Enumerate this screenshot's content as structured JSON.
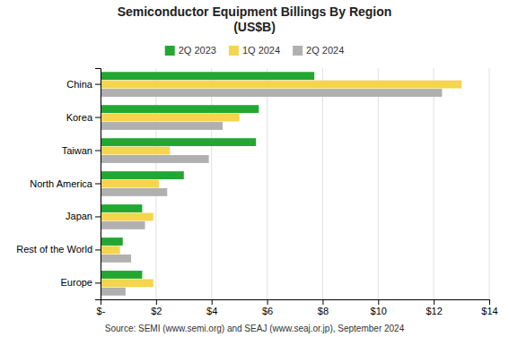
{
  "chart_data": {
    "type": "bar",
    "orientation": "horizontal",
    "title": "Semiconductor Equipment Billings By Region\n(US$B)",
    "subtitle": "Source: SEMI (www.semi.org) and SEAJ (www.seaj.or.jp), September 2024",
    "categories": [
      "China",
      "Korea",
      "Taiwan",
      "North America",
      "Japan",
      "Rest of the World",
      "Europe"
    ],
    "series": [
      {
        "name": "2Q 2023",
        "color": "#22a832",
        "values": [
          7.7,
          5.7,
          5.6,
          3.0,
          1.5,
          0.8,
          1.5
        ]
      },
      {
        "name": "1Q 2024",
        "color": "#f5d44e",
        "values": [
          13.0,
          5.0,
          2.5,
          2.1,
          1.9,
          0.7,
          1.9
        ]
      },
      {
        "name": "2Q 2024",
        "color": "#b0b0b0",
        "values": [
          12.3,
          4.4,
          3.9,
          2.4,
          1.6,
          1.1,
          0.9
        ]
      }
    ],
    "xlim": [
      0,
      14
    ],
    "xticks": [
      {
        "value": 0,
        "label": "$-"
      },
      {
        "value": 2,
        "label": "$2"
      },
      {
        "value": 4,
        "label": "$4"
      },
      {
        "value": 6,
        "label": "$6"
      },
      {
        "value": 8,
        "label": "$8"
      },
      {
        "value": 10,
        "label": "$10"
      },
      {
        "value": 12,
        "label": "$12"
      },
      {
        "value": 14,
        "label": "$14"
      }
    ],
    "grid": true,
    "legend": "top"
  }
}
